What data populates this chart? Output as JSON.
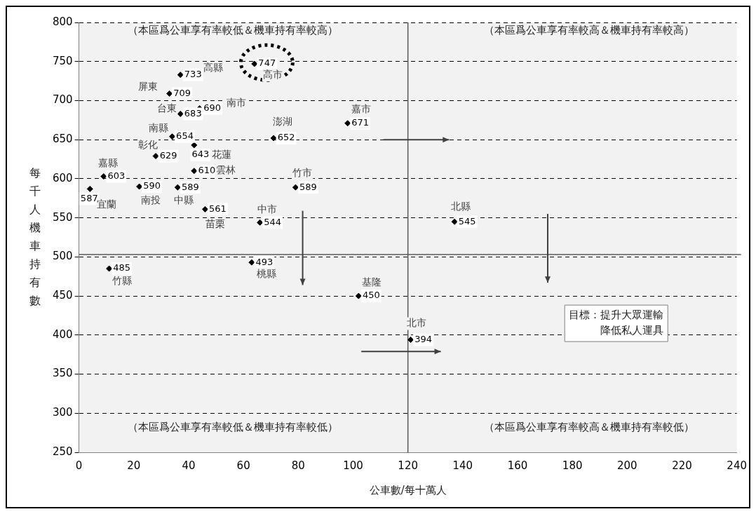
{
  "chart_data": {
    "type": "scatter",
    "xlabel": "公車數/每十萬人",
    "ylabel": "每千人機車持有數",
    "xlim": [
      0,
      240
    ],
    "xticks": [
      0,
      20,
      40,
      60,
      80,
      100,
      120,
      140,
      160,
      180,
      200,
      220,
      240
    ],
    "ylim": [
      250,
      800
    ],
    "yticks": [
      250,
      300,
      350,
      400,
      450,
      500,
      550,
      600,
      650,
      700,
      750,
      800
    ],
    "grid": "y",
    "legend": false,
    "marker": "diamond",
    "data_labels": true,
    "series": [
      {
        "name": "高市",
        "color": "#000000",
        "x": [
          64
        ],
        "values": [
          747
        ]
      },
      {
        "name": "高縣",
        "color": "#000000",
        "x": [
          37
        ],
        "values": [
          733
        ]
      },
      {
        "name": "屏東",
        "color": "#000000",
        "x": [
          33
        ],
        "values": [
          709
        ]
      },
      {
        "name": "南市",
        "color": "#000000",
        "x": [
          44
        ],
        "values": [
          690
        ]
      },
      {
        "name": "台東",
        "color": "#000000",
        "x": [
          37
        ],
        "values": [
          683
        ]
      },
      {
        "name": "南縣",
        "color": "#000000",
        "x": [
          34
        ],
        "values": [
          654
        ]
      },
      {
        "name": "花蓮",
        "color": "#000000",
        "x": [
          42
        ],
        "values": [
          643
        ]
      },
      {
        "name": "彰化",
        "color": "#000000",
        "x": [
          28
        ],
        "values": [
          629
        ]
      },
      {
        "name": "雲林",
        "color": "#000000",
        "x": [
          42
        ],
        "values": [
          610
        ]
      },
      {
        "name": "嘉縣",
        "color": "#000000",
        "x": [
          9
        ],
        "values": [
          603
        ]
      },
      {
        "name": "宜蘭",
        "color": "#000000",
        "x": [
          4
        ],
        "values": [
          587
        ]
      },
      {
        "name": "南投",
        "color": "#000000",
        "x": [
          22
        ],
        "values": [
          590
        ]
      },
      {
        "name": "中縣",
        "color": "#000000",
        "x": [
          36
        ],
        "values": [
          589
        ]
      },
      {
        "name": "苗栗",
        "color": "#000000",
        "x": [
          46
        ],
        "values": [
          561
        ]
      },
      {
        "name": "中市",
        "color": "#000000",
        "x": [
          66
        ],
        "values": [
          544
        ]
      },
      {
        "name": "澎湖",
        "color": "#000000",
        "x": [
          71
        ],
        "values": [
          652
        ]
      },
      {
        "name": "竹市",
        "color": "#000000",
        "x": [
          79
        ],
        "values": [
          589
        ]
      },
      {
        "name": "嘉市",
        "color": "#000000",
        "x": [
          98
        ],
        "values": [
          671
        ]
      },
      {
        "name": "北縣",
        "color": "#000000",
        "x": [
          137
        ],
        "values": [
          545
        ]
      },
      {
        "name": "竹縣",
        "color": "#000000",
        "x": [
          11
        ],
        "values": [
          485
        ]
      },
      {
        "name": "桃縣",
        "color": "#000000",
        "x": [
          63
        ],
        "values": [
          493
        ]
      },
      {
        "name": "基隆",
        "color": "#000000",
        "x": [
          102
        ],
        "values": [
          450
        ]
      },
      {
        "name": "北市",
        "color": "#000000",
        "x": [
          121
        ],
        "values": [
          394
        ]
      }
    ],
    "ref_lines": [
      {
        "axis": "x",
        "value": 120,
        "color": "#595959"
      },
      {
        "axis": "y",
        "value": 503,
        "color": "#595959"
      }
    ],
    "annotations": [
      "（本區爲公車享有率較低＆機車持有率較高）",
      "（本區爲公車享有率較高＆機車持有率較高）",
      "（本區爲公車享有率較低＆機車持有率較低）",
      "（本區爲公車享有率較高＆機車持有率較低）",
      "目標：提升大眾運輸降低私人運具"
    ]
  }
}
